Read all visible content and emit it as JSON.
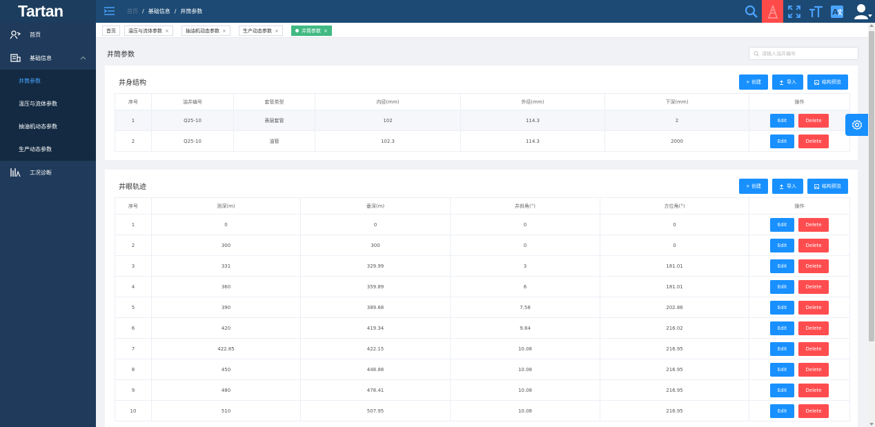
{
  "app": {
    "logo": "Tartan"
  },
  "sidebar": {
    "items": [
      {
        "label": "首页",
        "icon": "map-pin-icon"
      },
      {
        "label": "基础信息",
        "icon": "database-icon"
      },
      {
        "label": "工况诊断",
        "icon": "chart-icon"
      }
    ],
    "sub": [
      {
        "label": "井筒参数",
        "active": true
      },
      {
        "label": "温压与流体参数"
      },
      {
        "label": "抽油机动态参数"
      },
      {
        "label": "生产动态参数"
      }
    ]
  },
  "breadcrumb": {
    "home": "首页",
    "parent": "基础信息",
    "current": "井筒参数"
  },
  "tabs": [
    {
      "label": "首页"
    },
    {
      "label": "温压与流体参数"
    },
    {
      "label": "抽油机动态参数"
    },
    {
      "label": "生产动态参数"
    },
    {
      "label": "井筒参数"
    }
  ],
  "main": {
    "title": "井筒参数",
    "search_placeholder": "请输入油井编号"
  },
  "structure": {
    "title": "井身结构",
    "buttons": {
      "create": "+ 创建",
      "import": "导入",
      "preview": "结构预览"
    },
    "headers": [
      "序号",
      "油井编号",
      "套管类型",
      "内径(mm)",
      "外径(mm)",
      "下深(mm)",
      "操作"
    ],
    "rows": [
      [
        "1",
        "Q25-10",
        "表层套管",
        "102",
        "114.3",
        "2"
      ],
      [
        "2",
        "Q25-10",
        "油管",
        "102.3",
        "114.3",
        "2000"
      ]
    ]
  },
  "trajectory": {
    "title": "井眼轨迹",
    "buttons": {
      "create": "+ 创建",
      "import": "导入",
      "preview": "结构预览"
    },
    "headers": [
      "序号",
      "测深(m)",
      "垂深(m)",
      "井斜角(°)",
      "方位角(°)",
      "操作"
    ],
    "rows": [
      [
        "1",
        "0",
        "0",
        "0",
        "0"
      ],
      [
        "2",
        "300",
        "300",
        "0",
        "0"
      ],
      [
        "3",
        "331",
        "329.99",
        "3",
        "181.01"
      ],
      [
        "4",
        "360",
        "359.89",
        "6",
        "181.01"
      ],
      [
        "5",
        "390",
        "389.68",
        "7.58",
        "202.86"
      ],
      [
        "6",
        "420",
        "419.34",
        "9.84",
        "216.02"
      ],
      [
        "7",
        "422.85",
        "422.15",
        "10.08",
        "216.95"
      ],
      [
        "8",
        "450",
        "448.88",
        "10.08",
        "216.95"
      ],
      [
        "9",
        "480",
        "478.41",
        "10.08",
        "216.95"
      ],
      [
        "10",
        "510",
        "507.95",
        "10.08",
        "216.95"
      ]
    ]
  },
  "actions": {
    "edit": "Edit",
    "delete": "Delete"
  },
  "colors": {
    "primary": "#1890ff",
    "danger": "#ff4d4f",
    "sidebar": "#1f3a5a",
    "topbar": "#1d4a74",
    "active_tab": "#42b983"
  }
}
